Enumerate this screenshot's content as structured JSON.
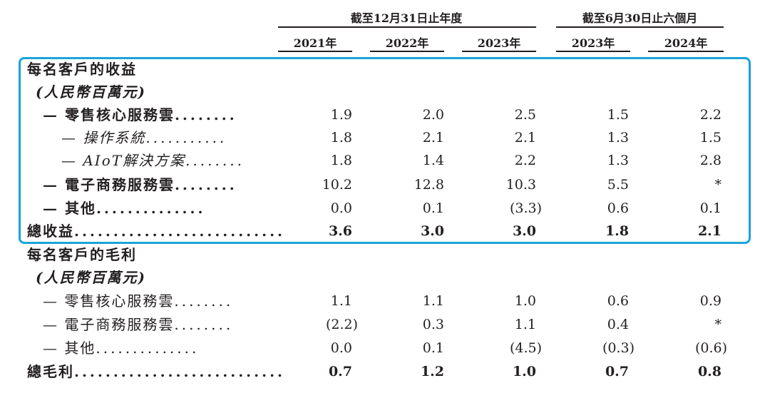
{
  "header": {
    "group_annual": "截至12月31日止年度",
    "group_half": "截至6月30日止六個月",
    "years": [
      "2021年",
      "2022年",
      "2023年",
      "2023年",
      "2024年"
    ]
  },
  "rows": [
    {
      "label": "每名客戶的收益",
      "dots": "",
      "values": [
        "",
        "",
        "",
        "",
        ""
      ]
    },
    {
      "label": "(人民幣百萬元)",
      "dots": "",
      "values": [
        "",
        "",
        "",
        "",
        ""
      ]
    },
    {
      "label": "— 零售核心服務雲",
      "dots": "........",
      "values": [
        "1.9",
        "2.0",
        "2.5",
        "1.5",
        "2.2"
      ]
    },
    {
      "label": "— 操作系統",
      "dots": "...........",
      "values": [
        "1.8",
        "2.1",
        "2.1",
        "1.3",
        "1.5"
      ]
    },
    {
      "label": "— AIoT解決方案",
      "dots": "........",
      "values": [
        "1.8",
        "1.4",
        "2.2",
        "1.3",
        "2.8"
      ]
    },
    {
      "label": "— 電子商務服務雲",
      "dots": "........",
      "values": [
        "10.2",
        "12.8",
        "10.3",
        "5.5",
        "*"
      ]
    },
    {
      "label": "— 其他",
      "dots": "..............",
      "values": [
        "0.0",
        "0.1",
        "(3.3)",
        "0.6",
        "0.1"
      ]
    },
    {
      "label": "總收益",
      "dots": "...........................",
      "values": [
        "3.6",
        "3.0",
        "3.0",
        "1.8",
        "2.1"
      ]
    },
    {
      "label": "每名客戶的毛利",
      "dots": "",
      "values": [
        "",
        "",
        "",
        "",
        ""
      ]
    },
    {
      "label": "(人民幣百萬元)",
      "dots": "",
      "values": [
        "",
        "",
        "",
        "",
        ""
      ]
    },
    {
      "label": "— 零售核心服務雲",
      "dots": "........",
      "values": [
        "1.1",
        "1.1",
        "1.0",
        "0.6",
        "0.9"
      ]
    },
    {
      "label": "— 電子商務服務雲",
      "dots": "........",
      "values": [
        "(2.2)",
        "0.3",
        "1.1",
        "0.4",
        "*"
      ]
    },
    {
      "label": "— 其他",
      "dots": "..............",
      "values": [
        "0.0",
        "0.1",
        "(4.5)",
        "(0.3)",
        "(0.6)"
      ]
    },
    {
      "label": "總毛利",
      "dots": "...........................",
      "values": [
        "0.7",
        "1.2",
        "1.0",
        "0.7",
        "0.8"
      ]
    }
  ]
}
